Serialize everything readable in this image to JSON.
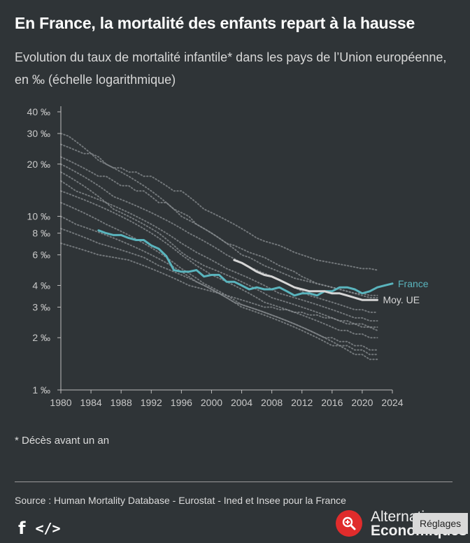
{
  "title": "En France, la mortalité des enfants repart à la hausse",
  "subtitle": "Evolution du taux de mortalité infantile* dans les pays de l’Union européenne, en ‰ (échelle logarithmique)",
  "footnote": "* Décès avant un an",
  "source": "Source : Human Mortality Database - Eurostat - Ined et Insee pour la France",
  "share": {
    "facebook_icon": "f",
    "embed_icon": "</>"
  },
  "logo": {
    "line1": "Alternatives",
    "line2": "Economiques"
  },
  "settings_button": "Réglages",
  "colors": {
    "background": "#2f3437",
    "france": "#5ab4bd",
    "eu": "#d6d6d6",
    "countries": "#8a8e91"
  },
  "chart_data": {
    "type": "line",
    "scale": "log",
    "ylim": [
      1,
      40
    ],
    "xlim": [
      1980,
      2024
    ],
    "yticks": [
      1,
      2,
      3,
      4,
      6,
      8,
      10,
      20,
      30,
      40
    ],
    "ytick_labels": [
      "1 ‰",
      "2 ‰",
      "3 ‰",
      "4 ‰",
      "6 ‰",
      "8 ‰",
      "10 ‰",
      "20 ‰",
      "30 ‰",
      "40 ‰"
    ],
    "xticks": [
      1980,
      1984,
      1988,
      1992,
      1996,
      2000,
      2004,
      2008,
      2012,
      2016,
      2020,
      2024
    ],
    "xtick_labels": [
      "1980",
      "1984",
      "1988",
      "1992",
      "1996",
      "2000",
      "2004",
      "2008",
      "2012",
      "2016",
      "2020",
      "2024"
    ],
    "series": [
      {
        "name": "France",
        "x": [
          1985,
          1986,
          1987,
          1988,
          1989,
          1990,
          1991,
          1992,
          1993,
          1994,
          1995,
          1996,
          1997,
          1998,
          1999,
          2000,
          2001,
          2002,
          2003,
          2004,
          2005,
          2006,
          2007,
          2008,
          2009,
          2010,
          2011,
          2012,
          2013,
          2014,
          2015,
          2016,
          2017,
          2018,
          2019,
          2020,
          2021,
          2022,
          2023,
          2024
        ],
        "values": [
          8.3,
          8.0,
          7.8,
          7.8,
          7.5,
          7.3,
          7.3,
          6.8,
          6.5,
          5.9,
          4.9,
          4.8,
          4.8,
          4.9,
          4.5,
          4.6,
          4.6,
          4.2,
          4.2,
          4.0,
          3.8,
          3.9,
          3.8,
          3.8,
          3.9,
          3.7,
          3.5,
          3.6,
          3.6,
          3.5,
          3.7,
          3.7,
          3.9,
          3.9,
          3.8,
          3.6,
          3.7,
          3.9,
          4.0,
          4.1
        ]
      },
      {
        "name": "Moy. UE",
        "x": [
          2003,
          2004,
          2005,
          2006,
          2007,
          2008,
          2009,
          2010,
          2011,
          2012,
          2013,
          2014,
          2015,
          2016,
          2017,
          2018,
          2019,
          2020,
          2021,
          2022
        ],
        "values": [
          5.6,
          5.4,
          5.1,
          4.8,
          4.6,
          4.5,
          4.3,
          4.1,
          3.9,
          3.8,
          3.7,
          3.7,
          3.7,
          3.6,
          3.6,
          3.5,
          3.4,
          3.3,
          3.3,
          3.3
        ]
      }
    ],
    "countries": [
      {
        "x0": 1980,
        "values": [
          30,
          29,
          27,
          25,
          23,
          22,
          20,
          19,
          18,
          17,
          16,
          15,
          14,
          13,
          12,
          11,
          10.5,
          10,
          9,
          8.5,
          8,
          7.5,
          7,
          6.5,
          6,
          5.8,
          5.5,
          5.2,
          5,
          4.8,
          4.6,
          4.4,
          4.3,
          4.2,
          4.1,
          4,
          3.9,
          3.8,
          3.7,
          3.6,
          3.6,
          3.5,
          3.5
        ]
      },
      {
        "x0": 1980,
        "values": [
          26,
          25,
          24,
          23,
          23,
          21,
          20,
          19,
          19,
          18,
          18,
          17,
          17,
          16,
          15,
          14,
          14,
          13,
          12,
          11,
          10.5,
          10,
          9.5,
          9,
          8.5,
          8,
          7.5,
          7.2,
          7,
          6.8,
          6.5,
          6.2,
          6,
          5.8,
          5.6,
          5.5,
          5.4,
          5.3,
          5.2,
          5.1,
          5,
          5,
          4.9
        ]
      },
      {
        "x0": 1980,
        "values": [
          22,
          21,
          20,
          19,
          18,
          17,
          17,
          16,
          15,
          15,
          14,
          14,
          13,
          12,
          12,
          11,
          10,
          9.5,
          9,
          8.5,
          8,
          7.5,
          7,
          6.8,
          6.5,
          6.2,
          6,
          5.8,
          5.5,
          5.2,
          5,
          4.8,
          4.5,
          4.3,
          4.1,
          4,
          3.9,
          3.8,
          3.7,
          3.6,
          3.5,
          3.4,
          3.4
        ]
      },
      {
        "x0": 1980,
        "values": [
          20,
          19,
          18,
          17,
          16,
          15,
          14,
          13,
          12.5,
          12,
          11.5,
          11,
          10.5,
          10,
          9.5,
          9,
          8.5,
          8,
          7.6,
          7.2,
          6.8,
          6.4,
          6,
          5.7,
          5.4,
          5.1,
          4.9,
          4.7,
          4.5,
          4.3,
          4.1,
          3.9,
          3.7,
          3.5,
          3.4,
          3.3,
          3.2,
          3.1,
          3,
          2.9,
          2.9,
          2.8,
          2.8
        ]
      },
      {
        "x0": 1980,
        "values": [
          18,
          17,
          16,
          15,
          14,
          13,
          12,
          11.5,
          11,
          10.5,
          10,
          9.5,
          9,
          8.5,
          8,
          7.5,
          7,
          6.6,
          6.2,
          5.9,
          5.6,
          5.3,
          5,
          4.8,
          4.6,
          4.4,
          4.2,
          4,
          3.8,
          3.6,
          3.5,
          3.4,
          3.3,
          3.2,
          3.1,
          3,
          2.9,
          2.8,
          2.7,
          2.6,
          2.6,
          2.5,
          2.5
        ]
      },
      {
        "x0": 1980,
        "values": [
          16,
          15,
          14,
          13.5,
          13,
          12.5,
          12,
          11,
          10.5,
          10,
          9.5,
          9,
          8.5,
          8,
          7.4,
          6.8,
          6.2,
          5.8,
          5.5,
          5.2,
          5,
          4.8,
          4.6,
          4.4,
          4.2,
          4,
          3.8,
          3.6,
          3.4,
          3.3,
          3.2,
          3.1,
          3,
          2.9,
          2.8,
          2.7,
          2.6,
          2.5,
          2.4,
          2.4,
          2.3,
          2.3,
          2.2
        ]
      },
      {
        "x0": 1980,
        "values": [
          14,
          13.5,
          13,
          12.5,
          12,
          11.5,
          11,
          10.5,
          10,
          9.5,
          9,
          8.5,
          8,
          7.5,
          7,
          6.5,
          6,
          5.6,
          5.2,
          4.9,
          4.6,
          4.4,
          4.2,
          4,
          3.8,
          3.6,
          3.4,
          3.2,
          3.1,
          3,
          2.9,
          2.8,
          2.7,
          2.6,
          2.5,
          2.4,
          2.3,
          2.2,
          2.2,
          2.1,
          2.1,
          2,
          2
        ]
      },
      {
        "x0": 1980,
        "values": [
          12,
          11.5,
          11,
          10.5,
          10,
          9.5,
          9,
          8.6,
          8.2,
          7.8,
          7.4,
          7,
          6.6,
          6.2,
          5.8,
          5.4,
          5,
          4.7,
          4.4,
          4.1,
          3.9,
          3.7,
          3.5,
          3.3,
          3.1,
          3,
          2.9,
          2.8,
          2.7,
          2.6,
          2.5,
          2.4,
          2.3,
          2.2,
          2.1,
          2,
          1.9,
          1.8,
          1.8,
          1.7,
          1.7,
          1.6,
          1.6
        ]
      },
      {
        "x0": 1980,
        "values": [
          10,
          9.5,
          9,
          8.7,
          8.4,
          8.1,
          7.8,
          7.5,
          7.2,
          6.9,
          6.6,
          6.3,
          6,
          5.7,
          5.4,
          5.1,
          4.8,
          4.5,
          4.2,
          4,
          3.8,
          3.6,
          3.4,
          3.2,
          3,
          2.9,
          2.8,
          2.7,
          2.6,
          2.5,
          2.4,
          2.3,
          2.2,
          2.1,
          2,
          1.9,
          1.8,
          1.8,
          1.7,
          1.6,
          1.6,
          1.5,
          1.5
        ]
      },
      {
        "x0": 1980,
        "values": [
          8.5,
          8.2,
          7.9,
          7.6,
          7.3,
          7,
          6.8,
          6.6,
          6.4,
          6.2,
          6,
          5.8,
          5.5,
          5.2,
          5,
          4.8,
          4.6,
          4.4,
          4.2,
          4,
          3.8,
          3.6,
          3.4,
          3.2,
          3.1,
          3,
          2.9,
          2.8,
          2.7,
          2.6,
          2.5,
          2.4,
          2.3,
          2.2,
          2.1,
          2,
          2,
          1.9,
          1.9,
          1.8,
          1.8,
          1.7,
          1.7
        ]
      },
      {
        "x0": 1980,
        "values": [
          7,
          6.8,
          6.6,
          6.4,
          6.2,
          6,
          5.9,
          5.8,
          5.7,
          5.6,
          5.4,
          5.2,
          5,
          4.8,
          4.6,
          4.4,
          4.2,
          4,
          3.9,
          3.8,
          3.7,
          3.6,
          3.5,
          3.4,
          3.3,
          3.2,
          3.1,
          3,
          3,
          2.9,
          2.9,
          2.8,
          2.8,
          2.7,
          2.7,
          2.6,
          2.6,
          2.5,
          2.5,
          2.4,
          2.4,
          2.3,
          2.3
        ]
      }
    ]
  }
}
